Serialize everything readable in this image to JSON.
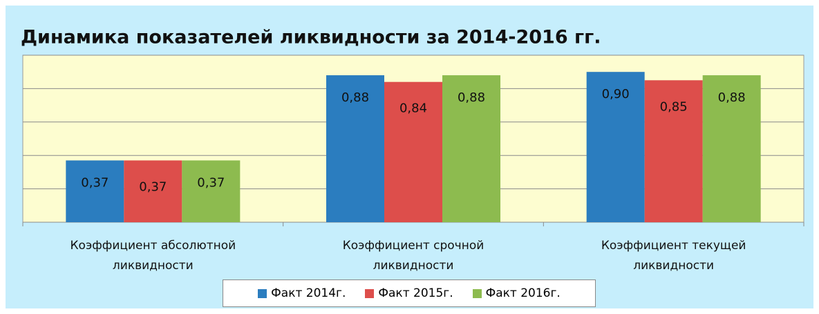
{
  "chart_data": {
    "type": "bar",
    "title": "Динамика показателей ликвидности за 2014-2016 гг.",
    "categories": [
      "Коэффициент абсолютной ликвидности",
      "Коэффициент срочной ликвидности",
      "Коэффициент текущей ликвидности"
    ],
    "series": [
      {
        "name": "Факт 2014г.",
        "color": "#2b7dbf",
        "values": [
          0.37,
          0.88,
          0.9
        ],
        "value_labels": [
          "0,37",
          "0,88",
          "0,90"
        ]
      },
      {
        "name": "Факт 2015г.",
        "color": "#dd4e4b",
        "values": [
          0.37,
          0.84,
          0.85
        ],
        "value_labels": [
          "0,37",
          "0,84",
          "0,85"
        ]
      },
      {
        "name": "Факт 2016г.",
        "color": "#8dbb4f",
        "values": [
          0.37,
          0.88,
          0.88
        ],
        "value_labels": [
          "0,37",
          "0,88",
          "0,88"
        ]
      }
    ],
    "ylim": [
      0,
      1
    ],
    "yticks": [
      0,
      0.2,
      0.4,
      0.6,
      0.8,
      1
    ],
    "grid": true,
    "legend": "bottom"
  }
}
